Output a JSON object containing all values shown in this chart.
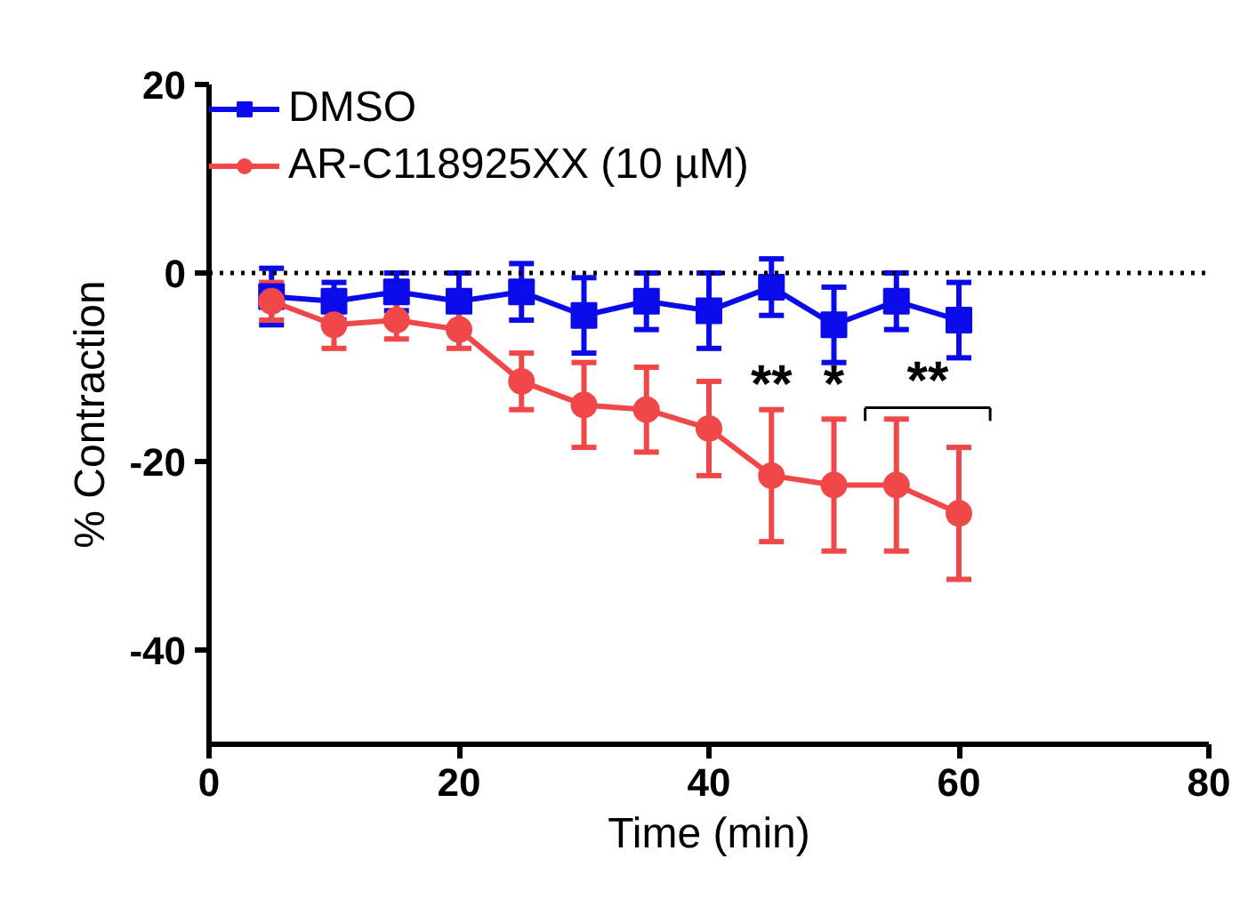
{
  "chart_data": {
    "type": "line",
    "xlabel": "Time (min)",
    "ylabel": "% Contraction",
    "x": [
      5,
      10,
      15,
      20,
      25,
      30,
      35,
      40,
      45,
      50,
      55,
      60
    ],
    "xlim": [
      0,
      80
    ],
    "xticks": [
      0,
      20,
      40,
      60,
      80
    ],
    "ylim": [
      -50,
      20
    ],
    "yticks": [
      -40,
      -20,
      0,
      20
    ],
    "series": [
      {
        "name": "DMSO",
        "color": "#0a0aea",
        "marker": "square",
        "values": [
          -2.5,
          -3,
          -2,
          -3,
          -2,
          -4.5,
          -3,
          -4,
          -1.5,
          -5.5,
          -3,
          -5
        ],
        "errors": [
          3,
          2,
          2,
          3,
          3,
          4,
          3,
          4,
          3,
          4,
          3,
          4
        ]
      },
      {
        "name": "AR-C118925XX (10 µM)",
        "color": "#f04848",
        "marker": "circle",
        "values": [
          -3,
          -5.5,
          -5,
          -6,
          -11.5,
          -14,
          -14.5,
          -16.5,
          -21.5,
          -22.5,
          -22.5,
          -25.5
        ],
        "errors": [
          2,
          2.5,
          2,
          2,
          3,
          4.5,
          4.5,
          5,
          7,
          7,
          7,
          7
        ]
      }
    ],
    "ref_lines": [
      {
        "axis": "y",
        "value": 0,
        "line_style": "dotted",
        "color": "#000000"
      }
    ],
    "annotations": [
      {
        "text": "**",
        "x": 45,
        "y": -15
      },
      {
        "text": "*",
        "x": 50,
        "y": -15
      },
      "**"
    ],
    "legend": "top left",
    "grid": false,
    "line_style": "solid"
  }
}
